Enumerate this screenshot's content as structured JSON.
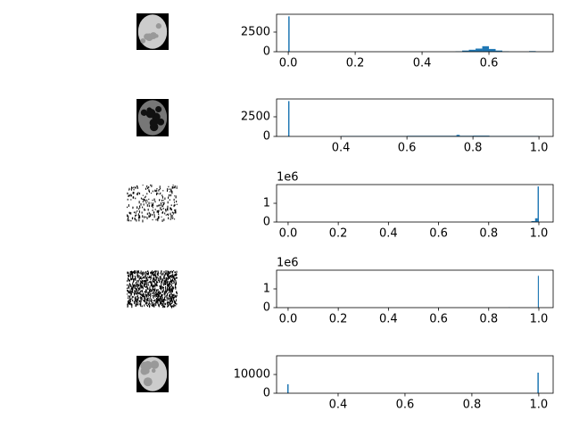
{
  "chart_data": [
    {
      "type": "histogram",
      "color": "#1f77b4",
      "bins": [
        0,
        0.004,
        0.5,
        0.52,
        0.54,
        0.56,
        0.58,
        0.6,
        0.62,
        0.64,
        0.66,
        0.72,
        0.74
      ],
      "counts": [
        4500,
        0,
        50,
        150,
        250,
        400,
        700,
        350,
        150,
        50,
        0,
        80
      ],
      "xlim": [
        -0.035,
        0.792
      ],
      "ylim": [
        0,
        4770
      ],
      "xticks": [
        {
          "value": 0,
          "label": "0.0"
        },
        0.2,
        0.4,
        0.6
      ],
      "yticks": [
        0,
        2500
      ]
    },
    {
      "type": "histogram",
      "color": "#1f77b4",
      "bins": [
        0.24,
        0.244,
        0.4,
        0.6,
        0.75,
        0.76,
        0.8,
        0.85,
        1.0
      ],
      "counts": [
        4500,
        0,
        60,
        80,
        200,
        80,
        100,
        60
      ],
      "xlim": [
        0.205,
        1.043
      ],
      "ylim": [
        0,
        4770
      ],
      "xticks": [
        0.4,
        0.6,
        0.8,
        {
          "value": 1,
          "label": "1.0"
        }
      ],
      "yticks": [
        0,
        2500
      ]
    },
    {
      "type": "histogram",
      "color": "#1f77b4",
      "offset_text": "1e6",
      "bins": [
        0.97,
        0.985,
        0.995,
        1.0
      ],
      "counts": [
        0.05,
        0.2,
        1.9
      ],
      "xlim": [
        -0.046,
        1.057
      ],
      "ylim": [
        0,
        2
      ],
      "xticks": [
        {
          "value": 0,
          "label": "0.0"
        },
        0.2,
        0.4,
        0.6,
        0.8,
        {
          "value": 1,
          "label": "1.0"
        }
      ],
      "yticks": [
        0,
        1
      ]
    },
    {
      "type": "histogram",
      "color": "#1f77b4",
      "offset_text": "1e6",
      "bins": [
        0.88,
        0.884,
        0.996,
        1.0
      ],
      "counts": [
        0.02,
        0,
        1.7
      ],
      "xlim": [
        -0.046,
        1.057
      ],
      "ylim": [
        0,
        2
      ],
      "xticks": [
        {
          "value": 0,
          "label": "0.0"
        },
        0.2,
        0.4,
        0.6,
        0.8,
        {
          "value": 1,
          "label": "1.0"
        }
      ],
      "yticks": [
        0,
        1
      ]
    },
    {
      "type": "histogram",
      "color": "#1f77b4",
      "bins": [
        0.248,
        0.252,
        0.996,
        1.0
      ],
      "counts": [
        4800,
        0,
        11000
      ],
      "xlim": [
        0.216,
        1.043
      ],
      "ylim": [
        0,
        20000
      ],
      "xticks": [
        0.4,
        0.6,
        0.8,
        {
          "value": 1,
          "label": "1.0"
        }
      ],
      "yticks": [
        0,
        10000
      ]
    }
  ]
}
